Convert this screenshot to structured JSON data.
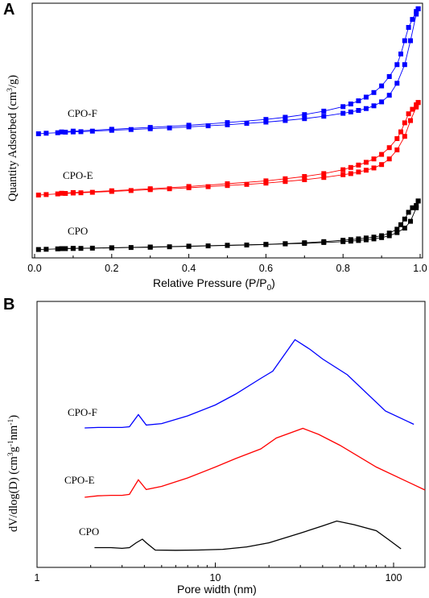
{
  "chart_data": [
    {
      "panel": "A",
      "type": "scatter",
      "xlabel": "Relative Pressure (P/P0)",
      "ylabel": "Quantity Adsorbed (cm3/g)",
      "xlim": [
        0.0,
        1.0
      ],
      "x_ticks": [
        "0.0",
        "0.2",
        "0.4",
        "0.6",
        "0.8",
        "1.0"
      ],
      "y_ticks_shown": false,
      "y_units": "arbitrary (curves vertically offset)",
      "series": [
        {
          "name": "CPO",
          "color": "#000000",
          "adsorption": [
            [
              0.01,
              0.05
            ],
            [
              0.03,
              0.06
            ],
            [
              0.06,
              0.08
            ],
            [
              0.08,
              0.09
            ],
            [
              0.1,
              0.1
            ],
            [
              0.12,
              0.1
            ],
            [
              0.15,
              0.11
            ],
            [
              0.2,
              0.12
            ],
            [
              0.25,
              0.14
            ],
            [
              0.3,
              0.15
            ],
            [
              0.35,
              0.17
            ],
            [
              0.4,
              0.19
            ],
            [
              0.45,
              0.21
            ],
            [
              0.5,
              0.23
            ],
            [
              0.55,
              0.25
            ],
            [
              0.6,
              0.27
            ],
            [
              0.65,
              0.3
            ],
            [
              0.7,
              0.32
            ],
            [
              0.75,
              0.36
            ],
            [
              0.8,
              0.4
            ],
            [
              0.82,
              0.42
            ],
            [
              0.84,
              0.45
            ],
            [
              0.86,
              0.48
            ],
            [
              0.88,
              0.52
            ],
            [
              0.9,
              0.58
            ],
            [
              0.92,
              0.66
            ],
            [
              0.94,
              0.8
            ],
            [
              0.96,
              1.0
            ],
            [
              0.975,
              1.3
            ],
            [
              0.99,
              1.9
            ],
            [
              0.995,
              2.2
            ]
          ],
          "desorption": [
            [
              0.995,
              2.2
            ],
            [
              0.99,
              2.0
            ],
            [
              0.98,
              1.9
            ],
            [
              0.97,
              1.7
            ],
            [
              0.96,
              1.4
            ],
            [
              0.95,
              1.15
            ],
            [
              0.94,
              0.95
            ],
            [
              0.92,
              0.78
            ],
            [
              0.9,
              0.66
            ],
            [
              0.88,
              0.6
            ],
            [
              0.86,
              0.56
            ],
            [
              0.84,
              0.52
            ],
            [
              0.82,
              0.49
            ],
            [
              0.8,
              0.46
            ],
            [
              0.75,
              0.4
            ],
            [
              0.7,
              0.35
            ],
            [
              0.65,
              0.31
            ],
            [
              0.6,
              0.28
            ],
            [
              0.5,
              0.24
            ],
            [
              0.4,
              0.2
            ],
            [
              0.3,
              0.16
            ],
            [
              0.2,
              0.13
            ],
            [
              0.1,
              0.1
            ],
            [
              0.07,
              0.09
            ]
          ]
        },
        {
          "name": "CPO-E",
          "color": "#ff0000",
          "adsorption": [
            [
              0.01,
              0.0
            ],
            [
              0.03,
              0.02
            ],
            [
              0.06,
              0.05
            ],
            [
              0.08,
              0.07
            ],
            [
              0.1,
              0.09
            ],
            [
              0.12,
              0.1
            ],
            [
              0.15,
              0.12
            ],
            [
              0.2,
              0.16
            ],
            [
              0.25,
              0.2
            ],
            [
              0.3,
              0.24
            ],
            [
              0.35,
              0.28
            ],
            [
              0.4,
              0.32
            ],
            [
              0.45,
              0.37
            ],
            [
              0.5,
              0.42
            ],
            [
              0.55,
              0.47
            ],
            [
              0.6,
              0.53
            ],
            [
              0.65,
              0.6
            ],
            [
              0.7,
              0.68
            ],
            [
              0.75,
              0.78
            ],
            [
              0.8,
              0.9
            ],
            [
              0.82,
              0.95
            ],
            [
              0.84,
              1.02
            ],
            [
              0.86,
              1.1
            ],
            [
              0.88,
              1.2
            ],
            [
              0.9,
              1.35
            ],
            [
              0.92,
              1.6
            ],
            [
              0.94,
              2.0
            ],
            [
              0.96,
              2.6
            ],
            [
              0.975,
              3.3
            ],
            [
              0.99,
              3.9
            ],
            [
              0.995,
              4.1
            ]
          ],
          "desorption": [
            [
              0.995,
              4.1
            ],
            [
              0.99,
              4.0
            ],
            [
              0.98,
              3.8
            ],
            [
              0.97,
              3.6
            ],
            [
              0.96,
              3.2
            ],
            [
              0.95,
              2.8
            ],
            [
              0.94,
              2.5
            ],
            [
              0.92,
              2.1
            ],
            [
              0.9,
              1.8
            ],
            [
              0.88,
              1.6
            ],
            [
              0.86,
              1.45
            ],
            [
              0.84,
              1.33
            ],
            [
              0.82,
              1.22
            ],
            [
              0.8,
              1.12
            ],
            [
              0.75,
              0.95
            ],
            [
              0.7,
              0.82
            ],
            [
              0.65,
              0.72
            ],
            [
              0.6,
              0.63
            ],
            [
              0.5,
              0.5
            ],
            [
              0.4,
              0.38
            ],
            [
              0.3,
              0.28
            ],
            [
              0.2,
              0.19
            ],
            [
              0.1,
              0.11
            ],
            [
              0.07,
              0.08
            ]
          ]
        },
        {
          "name": "CPO-F",
          "color": "#0000ff",
          "adsorption": [
            [
              0.01,
              0.0
            ],
            [
              0.03,
              0.02
            ],
            [
              0.06,
              0.04
            ],
            [
              0.08,
              0.06
            ],
            [
              0.1,
              0.07
            ],
            [
              0.12,
              0.08
            ],
            [
              0.15,
              0.1
            ],
            [
              0.2,
              0.13
            ],
            [
              0.25,
              0.16
            ],
            [
              0.3,
              0.19
            ],
            [
              0.35,
              0.22
            ],
            [
              0.4,
              0.26
            ],
            [
              0.45,
              0.3
            ],
            [
              0.5,
              0.34
            ],
            [
              0.55,
              0.39
            ],
            [
              0.6,
              0.44
            ],
            [
              0.65,
              0.5
            ],
            [
              0.7,
              0.57
            ],
            [
              0.75,
              0.66
            ],
            [
              0.8,
              0.77
            ],
            [
              0.82,
              0.82
            ],
            [
              0.84,
              0.88
            ],
            [
              0.86,
              0.95
            ],
            [
              0.88,
              1.05
            ],
            [
              0.9,
              1.2
            ],
            [
              0.92,
              1.45
            ],
            [
              0.94,
              1.9
            ],
            [
              0.96,
              2.6
            ],
            [
              0.975,
              3.5
            ],
            [
              0.99,
              4.5
            ],
            [
              0.995,
              4.7
            ]
          ],
          "desorption": [
            [
              0.995,
              4.7
            ],
            [
              0.99,
              4.6
            ],
            [
              0.98,
              4.3
            ],
            [
              0.97,
              4.0
            ],
            [
              0.96,
              3.5
            ],
            [
              0.95,
              3.0
            ],
            [
              0.94,
              2.6
            ],
            [
              0.92,
              2.15
            ],
            [
              0.9,
              1.8
            ],
            [
              0.88,
              1.55
            ],
            [
              0.86,
              1.38
            ],
            [
              0.84,
              1.24
            ],
            [
              0.82,
              1.12
            ],
            [
              0.8,
              1.02
            ],
            [
              0.75,
              0.85
            ],
            [
              0.7,
              0.72
            ],
            [
              0.65,
              0.62
            ],
            [
              0.6,
              0.54
            ],
            [
              0.5,
              0.42
            ],
            [
              0.4,
              0.32
            ],
            [
              0.3,
              0.24
            ],
            [
              0.2,
              0.17
            ],
            [
              0.1,
              0.1
            ],
            [
              0.07,
              0.07
            ]
          ]
        }
      ]
    },
    {
      "panel": "B",
      "type": "line",
      "xlabel": "Pore width (nm)",
      "ylabel": "dV/dlog(D) (cm3g-1nm-1)",
      "x_scale": "log",
      "xlim": [
        1,
        150
      ],
      "x_ticks": [
        "1",
        "10",
        "100"
      ],
      "y_ticks_shown": false,
      "y_units": "arbitrary (curves vertically offset)",
      "series": [
        {
          "name": "CPO-F",
          "color": "#0000ff",
          "points": [
            [
              1.85,
              0.0
            ],
            [
              2.2,
              0.02
            ],
            [
              2.6,
              0.02
            ],
            [
              3.0,
              0.02
            ],
            [
              3.3,
              0.05
            ],
            [
              3.7,
              0.55
            ],
            [
              4.1,
              0.12
            ],
            [
              5.0,
              0.18
            ],
            [
              7.0,
              0.5
            ],
            [
              10.0,
              0.95
            ],
            [
              13.0,
              1.4
            ],
            [
              18.0,
              2.05
            ],
            [
              21.0,
              2.35
            ],
            [
              28.0,
              3.65
            ],
            [
              34.0,
              3.25
            ],
            [
              40.0,
              2.85
            ],
            [
              55.0,
              2.2
            ],
            [
              90.0,
              0.7
            ],
            [
              130.0,
              0.15
            ]
          ]
        },
        {
          "name": "CPO-E",
          "color": "#ff0000",
          "points": [
            [
              1.85,
              0.0
            ],
            [
              2.2,
              0.06
            ],
            [
              2.6,
              0.08
            ],
            [
              3.0,
              0.08
            ],
            [
              3.3,
              0.12
            ],
            [
              3.7,
              0.72
            ],
            [
              4.1,
              0.32
            ],
            [
              5.0,
              0.45
            ],
            [
              7.0,
              0.8
            ],
            [
              10.0,
              1.25
            ],
            [
              13.0,
              1.6
            ],
            [
              18.0,
              2.0
            ],
            [
              22.0,
              2.45
            ],
            [
              31.0,
              2.85
            ],
            [
              38.0,
              2.6
            ],
            [
              50.0,
              2.15
            ],
            [
              80.0,
              1.25
            ],
            [
              150.0,
              0.3
            ]
          ]
        },
        {
          "name": "CPO",
          "color": "#000000",
          "points": [
            [
              2.1,
              0.15
            ],
            [
              2.6,
              0.15
            ],
            [
              3.0,
              0.12
            ],
            [
              3.3,
              0.15
            ],
            [
              3.6,
              0.35
            ],
            [
              3.9,
              0.5
            ],
            [
              4.1,
              0.35
            ],
            [
              4.6,
              0.05
            ],
            [
              6.0,
              0.04
            ],
            [
              8.0,
              0.05
            ],
            [
              11.0,
              0.08
            ],
            [
              15.0,
              0.18
            ],
            [
              20.0,
              0.35
            ],
            [
              30.0,
              0.75
            ],
            [
              40.0,
              1.05
            ],
            [
              48.0,
              1.25
            ],
            [
              60.0,
              1.1
            ],
            [
              80.0,
              0.85
            ],
            [
              95.0,
              0.45
            ],
            [
              110.0,
              0.1
            ]
          ]
        }
      ]
    }
  ],
  "text": {
    "panel_a_letter": "A",
    "panel_b_letter": "B",
    "a_xlabel_main": "Relative Pressure (P/P",
    "a_xlabel_sub": "0",
    "a_xlabel_end": ")",
    "a_ylabel_1": "Quantity Adsorbed (cm",
    "a_ylabel_sup": "3",
    "a_ylabel_2": "/g)",
    "b_xlabel": "Pore width (nm)",
    "b_ylabel_1": "dV/dlog(D) (cm",
    "b_ylabel_sup1": "3",
    "b_ylabel_2": "g",
    "b_ylabel_sup2": "-1",
    "b_ylabel_3": "nm",
    "b_ylabel_sup3": "-1",
    "b_ylabel_4": ")",
    "a_label_cpof": "CPO-F",
    "a_label_cpoe": "CPO-E",
    "a_label_cpo": "CPO",
    "b_label_cpof": "CPO-F",
    "b_label_cpoe": "CPO-E",
    "b_label_cpo": "CPO"
  }
}
